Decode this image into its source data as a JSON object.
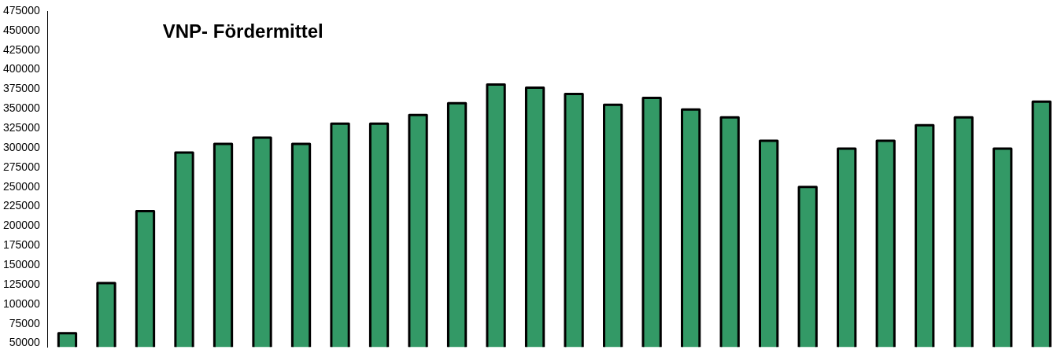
{
  "chart_data": {
    "type": "bar",
    "title": "VNP- Fördermittel",
    "categories": [
      null,
      null,
      null,
      null,
      null,
      null,
      null,
      null,
      null,
      null,
      null,
      null,
      null,
      null,
      null,
      null,
      null,
      null,
      null,
      null,
      null,
      null,
      null,
      null,
      null,
      null
    ],
    "values": [
      63000,
      127000,
      219000,
      294000,
      305000,
      313000,
      305000,
      331000,
      331000,
      342000,
      357000,
      381000,
      377000,
      369000,
      355000,
      364000,
      349000,
      339000,
      309000,
      250000,
      299000,
      309000,
      329000,
      339000,
      299000,
      359000
    ],
    "color": "#339966",
    "ylim": [
      45000,
      475000
    ],
    "yticks": [
      50000,
      75000,
      100000,
      125000,
      150000,
      175000,
      200000,
      225000,
      250000,
      275000,
      300000,
      325000,
      350000,
      375000,
      400000,
      425000,
      450000,
      475000
    ],
    "grid": false,
    "legend": false
  }
}
